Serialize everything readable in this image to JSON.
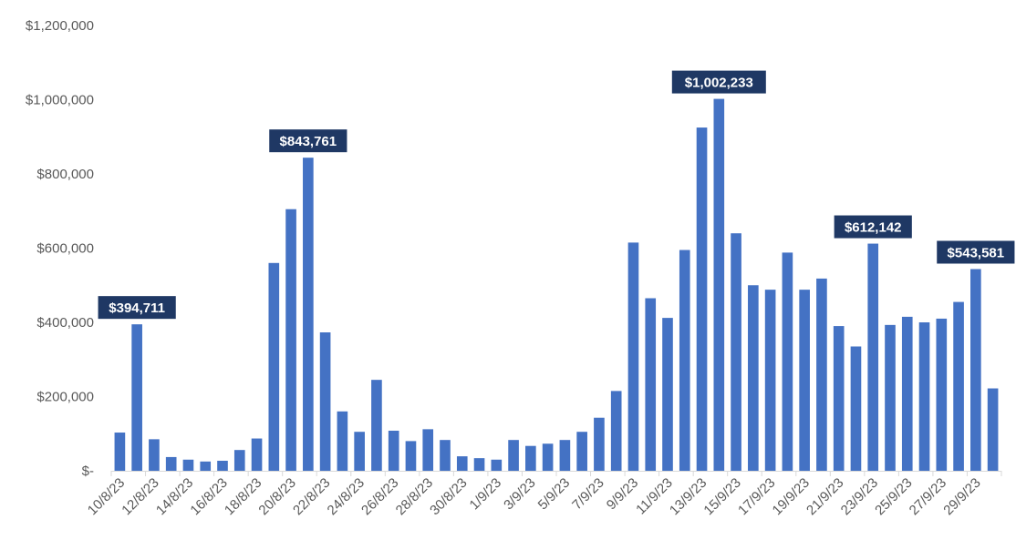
{
  "chart_data": {
    "type": "bar",
    "title": "",
    "xlabel": "",
    "ylabel": "",
    "ylim": [
      0,
      1200000
    ],
    "y_ticks": [
      {
        "value": 0,
        "label": "$-"
      },
      {
        "value": 200000,
        "label": "$200,000"
      },
      {
        "value": 400000,
        "label": "$400,000"
      },
      {
        "value": 600000,
        "label": "$600,000"
      },
      {
        "value": 800000,
        "label": "$800,000"
      },
      {
        "value": 1000000,
        "label": "$1,000,000"
      },
      {
        "value": 1200000,
        "label": "$1,200,000"
      }
    ],
    "grid": false,
    "legend": "none",
    "bar_color": "#4472C4",
    "annotation_color": "#1F3864",
    "categories": [
      "10/8/23",
      "11/8/23",
      "12/8/23",
      "13/8/23",
      "14/8/23",
      "15/8/23",
      "16/8/23",
      "17/8/23",
      "18/8/23",
      "19/8/23",
      "20/8/23",
      "21/8/23",
      "22/8/23",
      "23/8/23",
      "24/8/23",
      "25/8/23",
      "26/8/23",
      "27/8/23",
      "28/8/23",
      "29/8/23",
      "30/8/23",
      "31/8/23",
      "1/9/23",
      "2/9/23",
      "3/9/23",
      "4/9/23",
      "5/9/23",
      "6/9/23",
      "7/9/23",
      "8/9/23",
      "9/9/23",
      "10/9/23",
      "11/9/23",
      "12/9/23",
      "13/9/23",
      "14/9/23",
      "15/9/23",
      "16/9/23",
      "17/9/23",
      "18/9/23",
      "19/9/23",
      "20/9/23",
      "21/9/23",
      "22/9/23",
      "23/9/23",
      "24/9/23",
      "25/9/23",
      "26/9/23",
      "27/9/23",
      "28/9/23",
      "29/9/23",
      "30/9/23"
    ],
    "category_labels_shown": [
      "10/8/23",
      "12/8/23",
      "14/8/23",
      "16/8/23",
      "18/8/23",
      "20/8/23",
      "22/8/23",
      "24/8/23",
      "26/8/23",
      "28/8/23",
      "30/8/23",
      "1/9/23",
      "3/9/23",
      "5/9/23",
      "7/9/23",
      "9/9/23",
      "11/9/23",
      "13/9/23",
      "15/9/23",
      "17/9/23",
      "19/9/23",
      "21/9/23",
      "23/9/23",
      "25/9/23",
      "27/9/23",
      "29/9/23"
    ],
    "values": [
      103000,
      394711,
      85000,
      37000,
      30000,
      25000,
      27000,
      56000,
      87000,
      560000,
      705000,
      843761,
      373000,
      160000,
      105000,
      245000,
      108000,
      80000,
      112000,
      83000,
      39000,
      34000,
      30000,
      83000,
      67000,
      73000,
      83000,
      105000,
      143000,
      215000,
      615000,
      465000,
      412000,
      595000,
      925000,
      1002233,
      640000,
      500000,
      488000,
      588000,
      488000,
      518000,
      390000,
      335000,
      612142,
      393000,
      415000,
      400000,
      410000,
      455000,
      543581,
      222000
    ],
    "annotations": [
      {
        "index": 1,
        "label": "$394,711"
      },
      {
        "index": 11,
        "label": "$843,761"
      },
      {
        "index": 35,
        "label": "$1,002,233"
      },
      {
        "index": 44,
        "label": "$612,142"
      },
      {
        "index": 50,
        "label": "$543,581"
      }
    ]
  }
}
